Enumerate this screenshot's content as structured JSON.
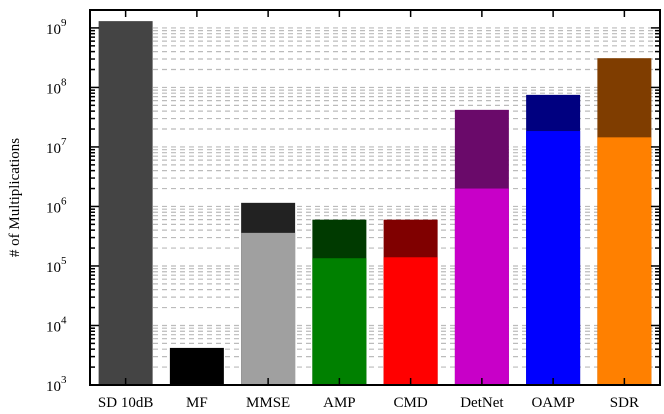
{
  "chart_data": {
    "type": "bar",
    "ylabel": "# of Multiplications",
    "xlabel": "",
    "title": "",
    "y_scale": "log",
    "ylim": [
      1000,
      2000000000
    ],
    "y_tick_labels": [
      {
        "base": "10",
        "exp": "3",
        "value": 1000
      },
      {
        "base": "10",
        "exp": "4",
        "value": 10000
      },
      {
        "base": "10",
        "exp": "5",
        "value": 100000
      },
      {
        "base": "10",
        "exp": "6",
        "value": 1000000
      },
      {
        "base": "10",
        "exp": "7",
        "value": 10000000
      },
      {
        "base": "10",
        "exp": "8",
        "value": 100000000
      },
      {
        "base": "10",
        "exp": "9",
        "value": 1000000000
      }
    ],
    "grid": true,
    "categories": [
      "SD 10dB",
      "MF",
      "MMSE",
      "AMP",
      "CMD",
      "DetNet",
      "OAMP",
      "SDR"
    ],
    "total_values": [
      1300000000,
      4200,
      1150000,
      600000,
      600000,
      42000000,
      75000000,
      310000000
    ],
    "lower_values": [
      1300000000,
      4200,
      360000,
      135000,
      140000,
      2000000,
      18500000,
      14500000
    ],
    "colors": {
      "top": [
        "#444444",
        "#000000",
        "#222222",
        "#003a00",
        "#800000",
        "#6a0a6a",
        "#000080",
        "#7f3d00"
      ],
      "bottom": [
        "#444444",
        "#000000",
        "#a0a0a0",
        "#008000",
        "#ff0000",
        "#c800c8",
        "#0000ff",
        "#ff8000"
      ]
    }
  }
}
